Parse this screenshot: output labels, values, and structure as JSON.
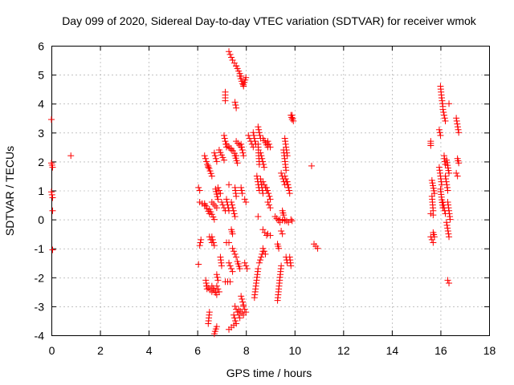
{
  "chart_data": {
    "type": "scatter",
    "title": "Day 099 of 2020, Sidereal Day-to-day VTEC variation (SDTVAR) for receiver wmok",
    "xlabel": "GPS time / hours",
    "ylabel": "SDTVAR / TECUs",
    "xlim": [
      0,
      18
    ],
    "ylim": [
      -4,
      6
    ],
    "xticks": [
      "0",
      "2",
      "4",
      "6",
      "8",
      "10",
      "12",
      "14",
      "16",
      "18"
    ],
    "yticks": [
      "-4",
      "-3",
      "-2",
      "-1",
      "0",
      "1",
      "2",
      "3",
      "4",
      "5",
      "6"
    ],
    "grid": true,
    "marker": "+",
    "colors": {
      "points": "#ff0000",
      "axes": "#000000",
      "grid": "#a0a0a0"
    },
    "series": [
      {
        "name": "SDTVAR",
        "segments": [
          [
            0.0,
            3.45,
            0.0,
            3.45
          ],
          [
            0.0,
            1.95,
            0.05,
            1.8
          ],
          [
            0.0,
            0.95,
            0.05,
            0.75
          ],
          [
            0.05,
            0.3,
            0.05,
            0.3
          ],
          [
            0.05,
            -1.05,
            0.05,
            -1.05
          ],
          [
            0.8,
            2.2,
            0.8,
            2.2
          ],
          [
            7.3,
            5.8,
            7.45,
            5.5
          ],
          [
            7.45,
            5.5,
            7.6,
            5.3
          ],
          [
            7.6,
            5.3,
            7.8,
            4.95
          ],
          [
            7.75,
            4.95,
            7.9,
            4.6
          ],
          [
            7.9,
            4.65,
            8.0,
            4.9
          ],
          [
            7.15,
            4.4,
            7.15,
            4.1
          ],
          [
            7.55,
            4.05,
            7.6,
            3.85
          ],
          [
            9.85,
            3.6,
            9.9,
            3.45
          ],
          [
            9.9,
            3.6,
            9.95,
            3.4
          ],
          [
            6.3,
            2.2,
            6.45,
            1.8
          ],
          [
            6.45,
            1.85,
            6.6,
            1.5
          ],
          [
            6.7,
            2.3,
            6.8,
            2.0
          ],
          [
            6.9,
            2.4,
            7.1,
            2.05
          ],
          [
            7.1,
            2.9,
            7.2,
            2.5
          ],
          [
            7.2,
            2.6,
            7.4,
            2.4
          ],
          [
            7.4,
            2.45,
            7.6,
            2.2
          ],
          [
            7.6,
            2.7,
            7.8,
            2.5
          ],
          [
            7.8,
            2.6,
            7.9,
            2.2
          ],
          [
            7.55,
            2.2,
            7.65,
            1.95
          ],
          [
            8.1,
            2.9,
            8.3,
            2.5
          ],
          [
            8.3,
            3.0,
            8.4,
            2.6
          ],
          [
            8.5,
            3.2,
            8.6,
            2.8
          ],
          [
            8.7,
            2.8,
            8.9,
            2.5
          ],
          [
            8.9,
            2.7,
            9.0,
            2.5
          ],
          [
            8.5,
            2.6,
            8.55,
            1.9
          ],
          [
            8.6,
            2.3,
            8.75,
            1.8
          ],
          [
            8.45,
            1.5,
            8.55,
            1.0
          ],
          [
            8.6,
            1.4,
            8.7,
            0.9
          ],
          [
            8.7,
            1.3,
            8.85,
            1.0
          ],
          [
            8.85,
            1.1,
            9.0,
            0.7
          ],
          [
            8.9,
            0.6,
            9.0,
            0.4
          ],
          [
            9.6,
            2.8,
            9.7,
            2.2
          ],
          [
            9.55,
            2.4,
            9.65,
            1.7
          ],
          [
            9.45,
            1.6,
            9.6,
            1.2
          ],
          [
            9.6,
            1.5,
            9.75,
            1.1
          ],
          [
            9.7,
            1.3,
            9.8,
            0.9
          ],
          [
            10.7,
            1.85,
            10.7,
            1.85
          ],
          [
            6.05,
            1.1,
            6.1,
            1.0
          ],
          [
            6.1,
            0.6,
            6.3,
            0.5
          ],
          [
            6.3,
            0.55,
            6.5,
            0.2
          ],
          [
            6.5,
            0.35,
            6.7,
            0.0
          ],
          [
            6.6,
            0.6,
            6.8,
            0.4
          ],
          [
            6.75,
            1.05,
            6.85,
            0.7
          ],
          [
            6.85,
            1.1,
            6.95,
            0.9
          ],
          [
            7.0,
            0.6,
            7.15,
            0.3
          ],
          [
            7.2,
            0.7,
            7.3,
            0.3
          ],
          [
            7.3,
            1.2,
            7.3,
            1.2
          ],
          [
            7.4,
            0.6,
            7.55,
            0.1
          ],
          [
            7.55,
            1.1,
            7.6,
            0.8
          ],
          [
            7.8,
            1.1,
            7.85,
            0.9
          ],
          [
            7.95,
            0.7,
            8.0,
            0.6
          ],
          [
            8.5,
            0.1,
            8.5,
            0.1
          ],
          [
            9.5,
            0.3,
            9.55,
            0.15
          ],
          [
            9.2,
            0.1,
            9.4,
            -0.1
          ],
          [
            9.4,
            0.0,
            9.6,
            -0.05
          ],
          [
            9.6,
            0.0,
            9.75,
            -0.1
          ],
          [
            9.85,
            0.0,
            9.9,
            -0.05
          ],
          [
            6.1,
            -0.9,
            6.15,
            -0.7
          ],
          [
            6.5,
            -0.6,
            6.6,
            -0.8
          ],
          [
            6.6,
            -0.6,
            6.7,
            -0.9
          ],
          [
            7.2,
            -0.8,
            7.3,
            -0.8
          ],
          [
            7.4,
            -0.35,
            7.45,
            -0.5
          ],
          [
            7.45,
            -1.0,
            7.6,
            -1.3
          ],
          [
            8.7,
            -0.35,
            8.85,
            -0.55
          ],
          [
            8.9,
            -0.5,
            9.0,
            -0.55
          ],
          [
            9.3,
            -0.85,
            9.35,
            -1.0
          ],
          [
            9.45,
            -0.4,
            9.5,
            -0.5
          ],
          [
            10.8,
            -0.85,
            10.95,
            -1.0
          ],
          [
            6.05,
            -1.55,
            6.05,
            -1.55
          ],
          [
            6.35,
            -2.1,
            6.4,
            -2.4
          ],
          [
            6.4,
            -2.3,
            6.6,
            -2.5
          ],
          [
            6.6,
            -2.3,
            6.8,
            -2.6
          ],
          [
            6.8,
            -2.3,
            6.9,
            -2.5
          ],
          [
            6.8,
            -1.9,
            6.85,
            -2.1
          ],
          [
            6.95,
            -1.3,
            7.0,
            -1.6
          ],
          [
            7.15,
            -2.15,
            7.35,
            -2.15
          ],
          [
            7.3,
            -1.5,
            7.45,
            -1.8
          ],
          [
            7.65,
            -1.45,
            7.75,
            -1.7
          ],
          [
            7.95,
            -1.5,
            8.05,
            -1.7
          ],
          [
            8.35,
            -2.7,
            8.5,
            -1.7
          ],
          [
            8.55,
            -1.5,
            8.7,
            -1.1
          ],
          [
            8.7,
            -1.0,
            8.8,
            -1.2
          ],
          [
            9.3,
            -2.8,
            9.45,
            -1.6
          ],
          [
            9.65,
            -1.3,
            9.7,
            -1.5
          ],
          [
            9.8,
            -1.3,
            9.85,
            -1.6
          ],
          [
            6.45,
            -3.6,
            6.5,
            -3.2
          ],
          [
            6.7,
            -3.95,
            6.8,
            -3.7
          ],
          [
            7.3,
            -3.8,
            7.5,
            -3.65
          ],
          [
            7.5,
            -3.3,
            7.6,
            -3.6
          ],
          [
            7.55,
            -3.0,
            7.75,
            -3.4
          ],
          [
            7.7,
            -3.1,
            7.9,
            -3.3
          ],
          [
            7.8,
            -2.65,
            7.9,
            -2.95
          ],
          [
            7.9,
            -3.0,
            8.0,
            -3.2
          ],
          [
            15.6,
            2.7,
            15.6,
            2.55
          ],
          [
            15.65,
            1.35,
            15.75,
            0.9
          ],
          [
            15.65,
            0.8,
            15.7,
            0.3
          ],
          [
            15.6,
            0.2,
            15.7,
            0.15
          ],
          [
            15.6,
            -0.6,
            15.7,
            -0.8
          ],
          [
            15.7,
            -0.45,
            15.75,
            -0.6
          ],
          [
            15.95,
            3.1,
            16.0,
            2.9
          ],
          [
            16.0,
            4.6,
            16.05,
            4.2
          ],
          [
            16.05,
            4.2,
            16.1,
            3.9
          ],
          [
            16.1,
            3.8,
            16.2,
            3.4
          ],
          [
            16.15,
            2.2,
            16.2,
            1.9
          ],
          [
            15.95,
            1.8,
            16.05,
            1.2
          ],
          [
            16.0,
            1.05,
            16.1,
            0.4
          ],
          [
            16.1,
            0.6,
            16.2,
            0.2
          ],
          [
            16.2,
            1.5,
            16.3,
            1.0
          ],
          [
            16.25,
            2.05,
            16.35,
            1.6
          ],
          [
            16.3,
            0.6,
            16.4,
            0.0
          ],
          [
            16.25,
            -0.1,
            16.35,
            -0.6
          ],
          [
            16.35,
            4.0,
            16.4,
            4.0
          ],
          [
            16.3,
            -2.1,
            16.35,
            -2.2
          ],
          [
            16.65,
            3.5,
            16.75,
            3.0
          ],
          [
            16.7,
            2.1,
            16.75,
            1.95
          ],
          [
            16.65,
            1.6,
            16.7,
            1.5
          ]
        ]
      }
    ]
  }
}
